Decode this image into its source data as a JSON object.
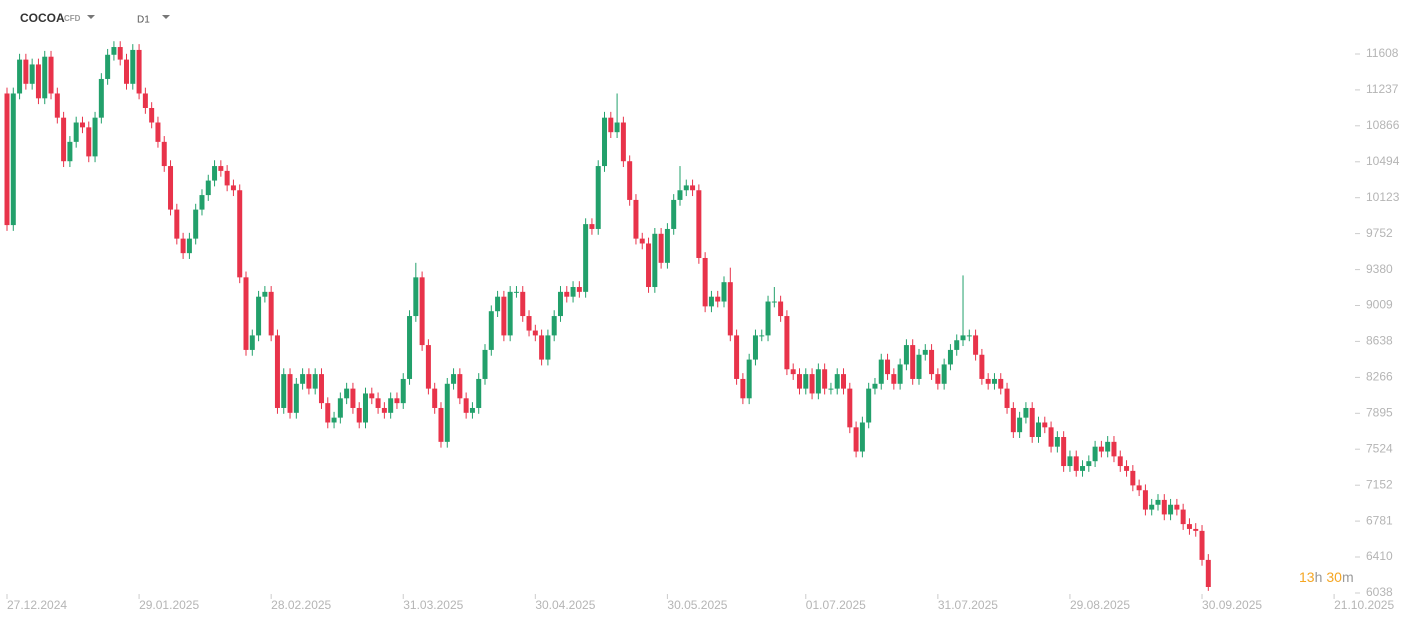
{
  "chart_data": {
    "type": "candlestick",
    "symbol": "COCOA",
    "instrument_type": "CFD",
    "timeframe": "D1",
    "timer": {
      "hours": "13",
      "hours_unit": "h",
      "minutes": "30",
      "minutes_unit": "m"
    },
    "up_color": "#22a06b",
    "down_color": "#e8334a",
    "ylim": [
      6038,
      12166
    ],
    "yticks": [
      11608,
      11237,
      10866,
      10494,
      10123,
      9752,
      9380,
      9009,
      8638,
      8266,
      7895,
      7524,
      7152,
      6781,
      6410,
      6038
    ],
    "xlim": [
      0,
      221
    ],
    "xticks": [
      {
        "value": 0,
        "label": "27.12.2024"
      },
      {
        "value": 21,
        "label": "29.01.2025"
      },
      {
        "value": 42,
        "label": "28.02.2025"
      },
      {
        "value": 63,
        "label": "31.03.2025"
      },
      {
        "value": 84,
        "label": "30.04.2025"
      },
      {
        "value": 105,
        "label": "30.05.2025"
      },
      {
        "value": 127,
        "label": "01.07.2025"
      },
      {
        "value": 148,
        "label": "31.07.2025"
      },
      {
        "value": 169,
        "label": "29.08.2025"
      },
      {
        "value": 190,
        "label": "30.09.2025"
      },
      {
        "value": 211,
        "label": "21.10.2025"
      }
    ],
    "open": [
      11200,
      9840,
      11200,
      11550,
      11300,
      11500,
      11150,
      11580,
      11200,
      10950,
      10500,
      10700,
      10900,
      10850,
      10550,
      10950,
      11350,
      11600,
      11680,
      11550,
      11300,
      11650,
      11200,
      11050,
      10900,
      10700,
      10450,
      10000,
      9700,
      9550,
      9700,
      10000,
      10150,
      10300,
      10450,
      10400,
      10250,
      10200,
      9300,
      8550,
      8700,
      9100,
      9150,
      8700,
      7950,
      8300,
      7900,
      8200,
      8300,
      8150,
      8300,
      8000,
      7800,
      7850,
      8050,
      8150,
      7950,
      7800,
      8100,
      8050,
      7950,
      7900,
      8050,
      8000,
      8250,
      8900,
      9300,
      8600,
      8150,
      7950,
      7600,
      8200,
      8300,
      8050,
      7900,
      7950,
      8250,
      8550,
      8950,
      9100,
      8700,
      9150,
      9150,
      8900,
      8750,
      8700,
      8450,
      8700,
      8900,
      9150,
      9100,
      9200,
      9150,
      9850,
      9800,
      10450,
      10950,
      10800,
      10900,
      10500,
      10100,
      9700,
      9650,
      9200,
      9750,
      9450,
      9800,
      10100,
      10200,
      10250,
      10200,
      9500,
      9000,
      9100,
      9050,
      9250,
      8700,
      8250,
      8050,
      8450,
      8700,
      8700,
      9050,
      9050,
      8900,
      8350,
      8300,
      8150,
      8300,
      8100,
      8350,
      8150,
      8150,
      8300,
      8150,
      7750,
      7500,
      7800,
      8150,
      8200,
      8450,
      8300,
      8200,
      8400,
      8600,
      8250,
      8500,
      8550,
      8300,
      8200,
      8400,
      8550,
      8650,
      8700,
      8700,
      8500,
      8250,
      8200,
      8250,
      8150,
      7950,
      7700,
      7850,
      7950,
      7650,
      7800,
      7750,
      7550,
      7650,
      7350,
      7450,
      7300,
      7350,
      7400,
      7550,
      7500,
      7600,
      7450,
      7350,
      7300,
      7150,
      7100,
      6900,
      6950,
      7000,
      6850,
      6950,
      6900,
      6750,
      6700,
      6680,
      6380
    ],
    "high": [
      11260,
      11260,
      11610,
      11610,
      11560,
      11560,
      11640,
      11640,
      11260,
      11010,
      10760,
      10960,
      10960,
      10910,
      11010,
      11410,
      11660,
      11740,
      11740,
      11610,
      11710,
      11710,
      11260,
      11110,
      10960,
      10760,
      10510,
      10060,
      9760,
      9760,
      10060,
      10210,
      10360,
      10510,
      10510,
      10460,
      10310,
      10260,
      9360,
      8760,
      9160,
      9210,
      9210,
      8760,
      8360,
      8360,
      8260,
      8360,
      8360,
      8360,
      8360,
      8060,
      7910,
      8110,
      8210,
      8210,
      8010,
      8160,
      8160,
      8110,
      8010,
      8110,
      8110,
      8310,
      8960,
      9450,
      9360,
      8660,
      8210,
      8010,
      8260,
      8360,
      8360,
      8110,
      8010,
      8310,
      8610,
      9010,
      9160,
      9160,
      9210,
      9210,
      9210,
      8960,
      8810,
      8760,
      8760,
      8960,
      9210,
      9210,
      9260,
      9260,
      9910,
      9910,
      10510,
      11010,
      11010,
      11200,
      10960,
      10560,
      10160,
      9760,
      9710,
      9810,
      9810,
      9860,
      10160,
      10450,
      10310,
      10310,
      10260,
      9560,
      9160,
      9160,
      9310,
      9400,
      8760,
      8310,
      8510,
      8760,
      8760,
      9110,
      9200,
      9110,
      8960,
      8410,
      8360,
      8360,
      8360,
      8410,
      8410,
      8210,
      8360,
      8360,
      8210,
      7810,
      7860,
      8210,
      8260,
      8510,
      8510,
      8360,
      8460,
      8660,
      8660,
      8560,
      8610,
      8610,
      8360,
      8460,
      8610,
      8710,
      9320,
      8760,
      8760,
      8560,
      8310,
      8310,
      8310,
      8210,
      8010,
      7910,
      8010,
      8010,
      7860,
      7860,
      7810,
      7710,
      7710,
      7510,
      7510,
      7410,
      7460,
      7610,
      7610,
      7660,
      7660,
      7510,
      7410,
      7360,
      7210,
      7160,
      7010,
      7060,
      7060,
      7010,
      7010,
      6960,
      6810,
      6760,
      6740,
      6440
    ],
    "low": [
      9780,
      9780,
      11140,
      11240,
      11240,
      11090,
      11090,
      11140,
      10890,
      10440,
      10440,
      10640,
      10790,
      10490,
      10490,
      10890,
      11290,
      11540,
      11490,
      11240,
      11240,
      11140,
      10990,
      10840,
      10640,
      10390,
      9940,
      9640,
      9490,
      9490,
      9640,
      9940,
      10090,
      10240,
      10340,
      10190,
      10140,
      9240,
      8490,
      8490,
      8640,
      9040,
      8640,
      7890,
      7890,
      7840,
      7840,
      8140,
      8090,
      8090,
      7940,
      7740,
      7740,
      7790,
      7990,
      7890,
      7740,
      7740,
      7990,
      7890,
      7840,
      7840,
      7940,
      7940,
      8190,
      8840,
      8540,
      8090,
      7890,
      7540,
      7540,
      8140,
      7990,
      7840,
      7840,
      7890,
      8190,
      8490,
      8890,
      8640,
      8640,
      9090,
      8840,
      8690,
      8640,
      8390,
      8390,
      8640,
      8840,
      9040,
      9040,
      9090,
      9090,
      9740,
      9740,
      10390,
      10740,
      10740,
      10440,
      10040,
      9640,
      9590,
      9140,
      9140,
      9390,
      9390,
      9740,
      10040,
      10140,
      10140,
      9440,
      8940,
      8940,
      8990,
      8990,
      8640,
      8190,
      7990,
      7990,
      8390,
      8640,
      8640,
      8990,
      8840,
      8290,
      8240,
      8090,
      8090,
      8040,
      8040,
      8090,
      8090,
      8090,
      8090,
      7690,
      7440,
      7440,
      7740,
      8090,
      8140,
      8240,
      8140,
      8140,
      8340,
      8190,
      8190,
      8440,
      8240,
      8140,
      8140,
      8340,
      8490,
      8590,
      8640,
      8440,
      8190,
      8140,
      8140,
      8090,
      7890,
      7640,
      7640,
      7790,
      7590,
      7590,
      7690,
      7490,
      7490,
      7290,
      7290,
      7240,
      7240,
      7290,
      7340,
      7440,
      7440,
      7390,
      7290,
      7240,
      7090,
      7040,
      6840,
      6840,
      6890,
      6790,
      6790,
      6840,
      6690,
      6640,
      6620,
      6320,
      6060
    ],
    "close": [
      9840,
      11200,
      11550,
      11300,
      11500,
      11150,
      11580,
      11200,
      10950,
      10500,
      10700,
      10900,
      10850,
      10550,
      10950,
      11350,
      11600,
      11680,
      11550,
      11300,
      11650,
      11200,
      11050,
      10900,
      10700,
      10450,
      10000,
      9700,
      9550,
      9700,
      10000,
      10150,
      10300,
      10450,
      10400,
      10250,
      10200,
      9300,
      8550,
      8700,
      9100,
      9150,
      8700,
      7950,
      8300,
      7900,
      8200,
      8300,
      8150,
      8300,
      8000,
      7800,
      7850,
      8050,
      8150,
      7950,
      7800,
      8100,
      8050,
      7950,
      7900,
      8050,
      8000,
      8250,
      8900,
      9300,
      8600,
      8150,
      7950,
      7600,
      8200,
      8300,
      8050,
      7900,
      7950,
      8250,
      8550,
      8950,
      9100,
      8700,
      9150,
      9150,
      8900,
      8750,
      8700,
      8450,
      8700,
      8900,
      9150,
      9100,
      9200,
      9150,
      9850,
      9800,
      10450,
      10950,
      10800,
      10900,
      10500,
      10100,
      9700,
      9650,
      9200,
      9750,
      9450,
      9800,
      10100,
      10200,
      10250,
      10200,
      9500,
      9000,
      9100,
      9050,
      9250,
      8700,
      8250,
      8050,
      8450,
      8700,
      8700,
      9050,
      9050,
      8900,
      8350,
      8300,
      8150,
      8300,
      8100,
      8350,
      8150,
      8150,
      8300,
      8150,
      7750,
      7500,
      7800,
      8150,
      8200,
      8450,
      8300,
      8200,
      8400,
      8600,
      8250,
      8500,
      8550,
      8300,
      8200,
      8400,
      8550,
      8650,
      8700,
      8700,
      8500,
      8250,
      8200,
      8250,
      8150,
      7950,
      7700,
      7850,
      7950,
      7650,
      7800,
      7750,
      7550,
      7650,
      7350,
      7450,
      7300,
      7350,
      7400,
      7550,
      7500,
      7600,
      7450,
      7350,
      7300,
      7150,
      7100,
      6900,
      6950,
      7000,
      6850,
      6950,
      6900,
      6750,
      6700,
      6680,
      6380,
      6100
    ]
  }
}
